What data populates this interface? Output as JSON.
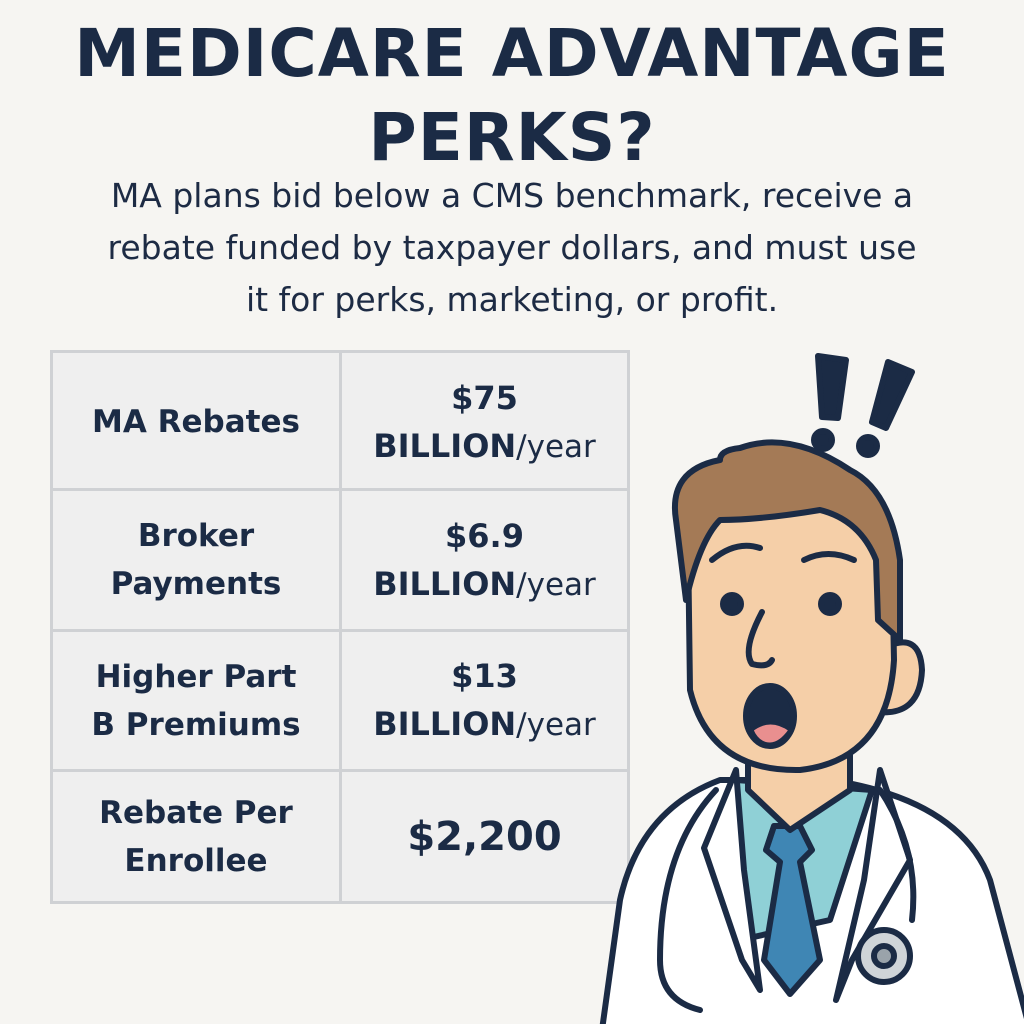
{
  "header": {
    "title_line1": "MEDICARE ADVANTAGE",
    "title_line2": "PERKS?",
    "subtitle_line1": "MA plans bid below a CMS benchmark, receive a",
    "subtitle_line2": "rebate funded by taxpayer dollars, and must use",
    "subtitle_line3": "it for perks, marketing, or profit."
  },
  "table": {
    "rows": [
      {
        "label_line1": "MA Rebates",
        "label_line2": "",
        "amount": "$75",
        "unit": "BILLION",
        "per": "/year"
      },
      {
        "label_line1": "Broker",
        "label_line2": "Payments",
        "amount": "$6.9",
        "unit": "BILLION",
        "per": "/year"
      },
      {
        "label_line1": "Higher Part",
        "label_line2": "B Premiums",
        "amount": "$13",
        "unit": "BILLION",
        "per": "/year"
      },
      {
        "label_line1": "Rebate Per",
        "label_line2": "Enrollee",
        "amount": "$2,200",
        "unit": "",
        "per": ""
      }
    ]
  },
  "illustration": {
    "icon": "surprised-doctor-illustration",
    "exclamation_icon": "double-exclamation-icon",
    "colors": {
      "skin": "#f5cfa8",
      "hair": "#a47a56",
      "coat": "#ffffff",
      "shirt": "#8fd0d6",
      "tie": "#3f86b4",
      "outline": "#1b2b45"
    }
  }
}
